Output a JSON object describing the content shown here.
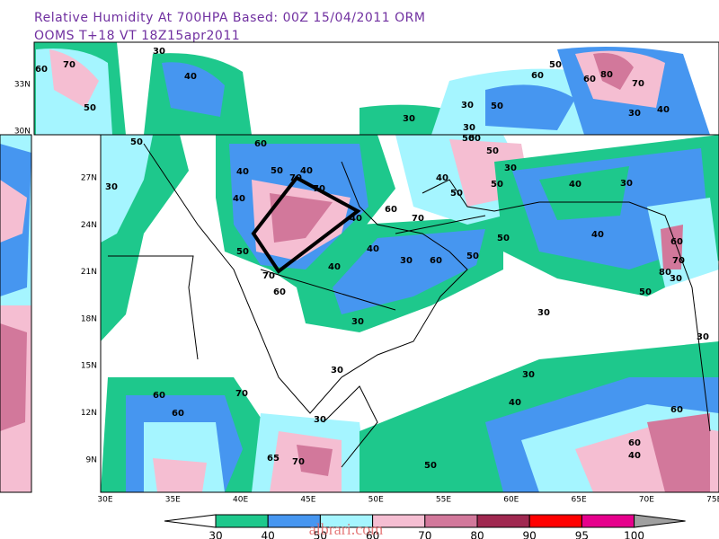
{
  "header": {
    "title": "Relative Humidity At 700HPA    Based: 00Z  15/04/2011  ORM",
    "subtitle": "OOMS  T+18 VT 18Z15apr2011"
  },
  "map": {
    "longitude_labels": [
      "30E",
      "35E",
      "40E",
      "45E",
      "50E",
      "55E",
      "60E",
      "65E",
      "70E",
      "75E"
    ],
    "latitude_labels": [
      "27N",
      "24N",
      "21N",
      "18N",
      "15N",
      "12N",
      "9N"
    ],
    "inset_latitude_labels": [
      "33N",
      "30N"
    ],
    "contour_labels": [
      "60",
      "70",
      "30",
      "50",
      "40",
      "30",
      "30",
      "50",
      "30",
      "50",
      "60",
      "50",
      "60",
      "80",
      "70",
      "30",
      "40",
      "50",
      "60",
      "40",
      "50",
      "40",
      "70",
      "30",
      "70",
      "40",
      "50",
      "40",
      "70",
      "60",
      "40",
      "70",
      "60",
      "40",
      "50",
      "40",
      "50",
      "60",
      "50",
      "30",
      "50",
      "40",
      "80",
      "70",
      "60",
      "30",
      "50",
      "30",
      "40",
      "50",
      "30",
      "60",
      "30",
      "30",
      "30",
      "30",
      "40",
      "60",
      "60",
      "70",
      "65",
      "70",
      "30",
      "50",
      "60",
      "60",
      "40",
      "30"
    ]
  },
  "colorbar": {
    "levels": [
      30,
      40,
      50,
      60,
      70,
      80,
      90,
      95,
      100
    ],
    "colors": [
      "#ffffff",
      "#1ec88c",
      "#4696f0",
      "#a5f5ff",
      "#f5bed2",
      "#d2789b",
      "#a02850",
      "#ff0000",
      "#e6008c",
      "#a0a0a0"
    ]
  },
  "watermark": "albrari.com"
}
